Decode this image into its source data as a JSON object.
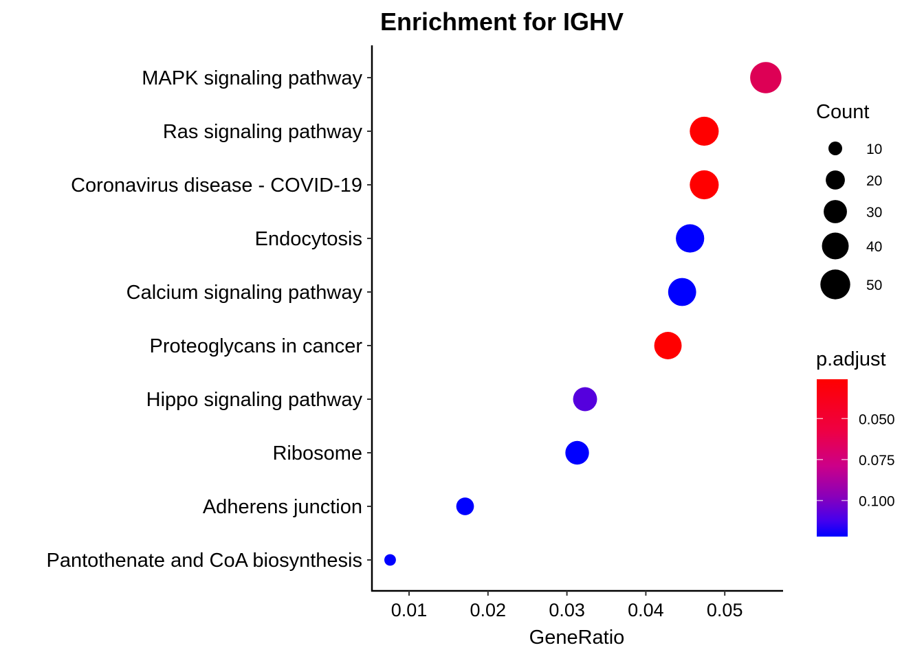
{
  "chart_data": {
    "type": "scatter",
    "title": "Enrichment for IGHV",
    "xlabel": "GeneRatio",
    "ylabel": "",
    "xlim": [
      0.0045,
      0.0585
    ],
    "x_ticks": [
      "0.01",
      "0.02",
      "0.03",
      "0.04",
      "0.05"
    ],
    "x_tick_values": [
      0.01,
      0.02,
      0.03,
      0.04,
      0.05
    ],
    "grid": false,
    "legend_position": "right",
    "points": [
      {
        "label": "MAPK signaling pathway",
        "gene_ratio": 0.0552,
        "count": 55,
        "p_adjust": 0.06,
        "color": "#dd0055"
      },
      {
        "label": "Ras signaling pathway",
        "gene_ratio": 0.0474,
        "count": 47,
        "p_adjust": 0.031,
        "color": "#ff0000"
      },
      {
        "label": "Coronavirus disease - COVID-19",
        "gene_ratio": 0.0474,
        "count": 47,
        "p_adjust": 0.031,
        "color": "#ff0000"
      },
      {
        "label": "Endocytosis",
        "gene_ratio": 0.0456,
        "count": 45,
        "p_adjust": 0.12,
        "color": "#0000ff"
      },
      {
        "label": "Calcium signaling pathway",
        "gene_ratio": 0.0446,
        "count": 44,
        "p_adjust": 0.12,
        "color": "#0000ff"
      },
      {
        "label": "Proteoglycans in cancer",
        "gene_ratio": 0.0428,
        "count": 42,
        "p_adjust": 0.031,
        "color": "#ff0000"
      },
      {
        "label": "Hippo signaling pathway",
        "gene_ratio": 0.0323,
        "count": 32,
        "p_adjust": 0.11,
        "color": "#5500dd"
      },
      {
        "label": "Ribosome",
        "gene_ratio": 0.0313,
        "count": 31,
        "p_adjust": 0.12,
        "color": "#0000ff"
      },
      {
        "label": "Adherens junction",
        "gene_ratio": 0.0171,
        "count": 17,
        "p_adjust": 0.12,
        "color": "#0000ff"
      },
      {
        "label": "Pantothenate and CoA biosynthesis",
        "gene_ratio": 0.0076,
        "count": 7,
        "p_adjust": 0.12,
        "color": "#0000ff"
      }
    ],
    "size_legend": {
      "title": "Count",
      "entries": [
        {
          "label": "10",
          "value": 10
        },
        {
          "label": "20",
          "value": 20
        },
        {
          "label": "30",
          "value": 30
        },
        {
          "label": "40",
          "value": 40
        },
        {
          "label": "50",
          "value": 50
        }
      ]
    },
    "color_legend": {
      "title": "p.adjust",
      "range": [
        0.026,
        0.122
      ],
      "low_color": "#ff0000",
      "high_color": "#0000ff",
      "ticks": [
        {
          "label": "0.050",
          "value": 0.05
        },
        {
          "label": "0.075",
          "value": 0.075
        },
        {
          "label": "0.100",
          "value": 0.1
        }
      ]
    }
  }
}
